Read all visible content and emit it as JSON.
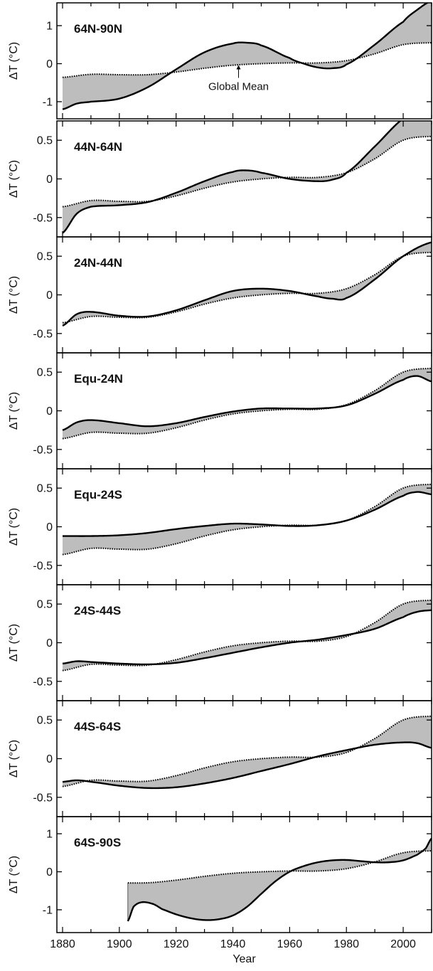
{
  "chart_data": {
    "type": "line",
    "x_axis": {
      "label": "Year",
      "range": [
        1878,
        2010
      ],
      "ticks": [
        1880,
        1900,
        1920,
        1940,
        1960,
        1980,
        2000
      ],
      "tick_labels": [
        "1880",
        "1900",
        "1920",
        "1940",
        "1960",
        "1980",
        "2000"
      ]
    },
    "y_label": "ΔT (°C)",
    "annotation": "Global Mean",
    "legend": "none",
    "grid": false,
    "colors": {
      "fill": "#bdbdbd",
      "regional_line": "#000000",
      "global_line": "#000000"
    },
    "global_mean_series": {
      "x": [
        1880,
        1890,
        1900,
        1910,
        1920,
        1930,
        1940,
        1950,
        1960,
        1970,
        1980,
        1990,
        2000,
        2010
      ],
      "y": [
        -0.36,
        -0.28,
        -0.29,
        -0.29,
        -0.22,
        -0.12,
        -0.04,
        0.0,
        0.02,
        0.02,
        0.08,
        0.26,
        0.5,
        0.55
      ]
    },
    "panels": [
      {
        "label": "64N-90N",
        "ylim": [
          -1.45,
          1.6
        ],
        "yticks": [
          1,
          0,
          -1
        ],
        "ytick_labels": [
          "1",
          "0",
          "-1"
        ],
        "regional": {
          "x": [
            1880,
            1885,
            1890,
            1900,
            1910,
            1920,
            1930,
            1940,
            1945,
            1950,
            1960,
            1965,
            1970,
            1975,
            1980,
            1990,
            2000,
            2005,
            2010
          ],
          "y": [
            -1.2,
            -1.05,
            -1.0,
            -0.92,
            -0.62,
            -0.15,
            0.3,
            0.53,
            0.55,
            0.48,
            0.15,
            0.0,
            -0.1,
            -0.12,
            -0.02,
            0.5,
            1.1,
            1.42,
            1.65
          ]
        }
      },
      {
        "label": "44N-64N",
        "ylim": [
          -0.75,
          0.75
        ],
        "yticks": [
          0.5,
          0,
          -0.5
        ],
        "ytick_labels": [
          "0.5",
          "0",
          "-0.5"
        ],
        "regional": {
          "x": [
            1880,
            1885,
            1890,
            1900,
            1910,
            1920,
            1930,
            1940,
            1945,
            1950,
            1960,
            1970,
            1975,
            1980,
            1990,
            2000,
            2010
          ],
          "y": [
            -0.7,
            -0.45,
            -0.36,
            -0.34,
            -0.3,
            -0.18,
            -0.03,
            0.09,
            0.11,
            0.08,
            0.0,
            -0.03,
            -0.01,
            0.08,
            0.42,
            0.78,
            0.95
          ]
        }
      },
      {
        "label": "24N-44N",
        "ylim": [
          -0.75,
          0.75
        ],
        "yticks": [
          0.5,
          0,
          -0.5
        ],
        "ytick_labels": [
          "0.5",
          "0",
          "-0.5"
        ],
        "regional": {
          "x": [
            1880,
            1885,
            1890,
            1900,
            1910,
            1920,
            1930,
            1940,
            1950,
            1960,
            1970,
            1975,
            1980,
            1990,
            2000,
            2010
          ],
          "y": [
            -0.4,
            -0.25,
            -0.22,
            -0.27,
            -0.28,
            -0.2,
            -0.07,
            0.05,
            0.08,
            0.05,
            -0.02,
            -0.05,
            -0.04,
            0.2,
            0.5,
            0.68
          ]
        }
      },
      {
        "label": "Equ-24N",
        "ylim": [
          -0.75,
          0.75
        ],
        "yticks": [
          0.5,
          0,
          -0.5
        ],
        "ytick_labels": [
          "0.5",
          "0",
          "-0.5"
        ],
        "regional": {
          "x": [
            1880,
            1885,
            1890,
            1900,
            1910,
            1920,
            1930,
            1940,
            1950,
            1960,
            1970,
            1980,
            1990,
            2000,
            2005,
            2010
          ],
          "y": [
            -0.25,
            -0.15,
            -0.12,
            -0.16,
            -0.2,
            -0.16,
            -0.08,
            -0.01,
            0.03,
            0.03,
            0.03,
            0.07,
            0.22,
            0.4,
            0.45,
            0.38
          ]
        }
      },
      {
        "label": "Equ-24S",
        "ylim": [
          -0.75,
          0.75
        ],
        "yticks": [
          0.5,
          0,
          -0.5
        ],
        "ytick_labels": [
          "0.5",
          "0",
          "-0.5"
        ],
        "regional": {
          "x": [
            1880,
            1890,
            1900,
            1910,
            1920,
            1930,
            1940,
            1950,
            1960,
            1970,
            1980,
            1990,
            2000,
            2005,
            2010
          ],
          "y": [
            -0.12,
            -0.12,
            -0.11,
            -0.08,
            -0.03,
            0.01,
            0.04,
            0.03,
            0.01,
            0.02,
            0.08,
            0.22,
            0.4,
            0.45,
            0.42
          ]
        }
      },
      {
        "label": "24S-44S",
        "ylim": [
          -0.75,
          0.75
        ],
        "yticks": [
          0.5,
          0,
          -0.5
        ],
        "ytick_labels": [
          "0.5",
          "0",
          "-0.5"
        ],
        "regional": {
          "x": [
            1880,
            1885,
            1890,
            1900,
            1910,
            1920,
            1930,
            1940,
            1950,
            1960,
            1970,
            1980,
            1990,
            2000,
            2005,
            2010
          ],
          "y": [
            -0.27,
            -0.24,
            -0.25,
            -0.27,
            -0.28,
            -0.26,
            -0.2,
            -0.13,
            -0.06,
            0.0,
            0.04,
            0.1,
            0.18,
            0.33,
            0.4,
            0.42
          ]
        }
      },
      {
        "label": "44S-64S",
        "ylim": [
          -0.75,
          0.75
        ],
        "yticks": [
          0.5,
          0,
          -0.5
        ],
        "ytick_labels": [
          "0.5",
          "0",
          "-0.5"
        ],
        "regional": {
          "x": [
            1880,
            1885,
            1890,
            1900,
            1910,
            1920,
            1930,
            1940,
            1950,
            1960,
            1970,
            1980,
            1990,
            2000,
            2005,
            2010
          ],
          "y": [
            -0.3,
            -0.28,
            -0.3,
            -0.35,
            -0.38,
            -0.37,
            -0.32,
            -0.25,
            -0.16,
            -0.07,
            0.03,
            0.11,
            0.18,
            0.21,
            0.2,
            0.14
          ]
        }
      },
      {
        "label": "64S-90S",
        "ylim": [
          -1.6,
          1.45
        ],
        "yticks": [
          1,
          0,
          -1
        ],
        "ytick_labels": [
          "1",
          "0",
          "-1"
        ],
        "x_start": 1903,
        "regional": {
          "x": [
            1903,
            1905,
            1908,
            1912,
            1915,
            1920,
            1925,
            1930,
            1935,
            1940,
            1945,
            1950,
            1955,
            1960,
            1965,
            1970,
            1975,
            1980,
            1985,
            1990,
            1995,
            2000,
            2005,
            2008,
            2010
          ],
          "y": [
            -1.3,
            -0.92,
            -0.8,
            -0.85,
            -0.98,
            -1.12,
            -1.22,
            -1.27,
            -1.25,
            -1.15,
            -0.92,
            -0.58,
            -0.25,
            0.0,
            0.15,
            0.25,
            0.3,
            0.31,
            0.28,
            0.25,
            0.25,
            0.3,
            0.45,
            0.62,
            0.88
          ]
        }
      }
    ]
  }
}
